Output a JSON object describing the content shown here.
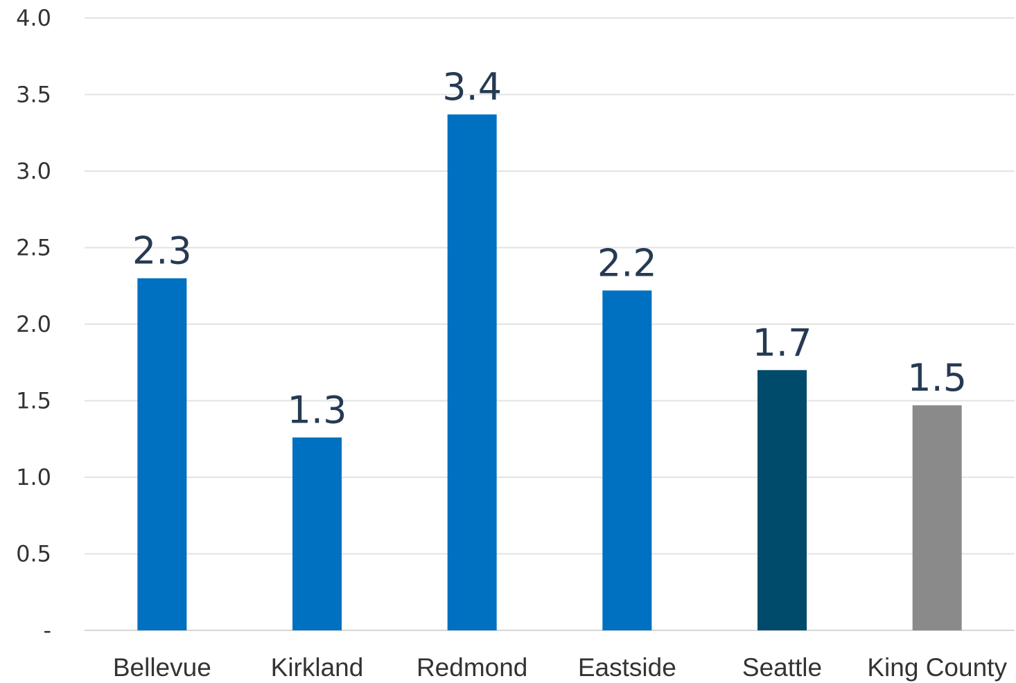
{
  "chart_data": {
    "type": "bar",
    "categories": [
      "Bellevue",
      "Kirkland",
      "Redmond",
      "Eastside",
      "Seattle",
      "King County"
    ],
    "values": [
      2.3,
      1.26,
      3.37,
      2.22,
      1.7,
      1.47
    ],
    "data_labels": [
      "2.3",
      "1.3",
      "3.4",
      "2.2",
      "1.7",
      "1.5"
    ],
    "colors": [
      "#0070c0",
      "#0070c0",
      "#0070c0",
      "#0070c0",
      "#004a6b",
      "#8a8a8a"
    ],
    "yticks": [
      {
        "value": 0,
        "label": "-"
      },
      {
        "value": 0.5,
        "label": "0.5"
      },
      {
        "value": 1.0,
        "label": "1.0"
      },
      {
        "value": 1.5,
        "label": "1.5"
      },
      {
        "value": 2.0,
        "label": "2.0"
      },
      {
        "value": 2.5,
        "label": "2.5"
      },
      {
        "value": 3.0,
        "label": "3.0"
      },
      {
        "value": 3.5,
        "label": "3.5"
      },
      {
        "value": 4.0,
        "label": "4.0"
      }
    ],
    "ylim": [
      0,
      4
    ],
    "grid": true,
    "title": "",
    "xlabel": "",
    "ylabel": ""
  }
}
